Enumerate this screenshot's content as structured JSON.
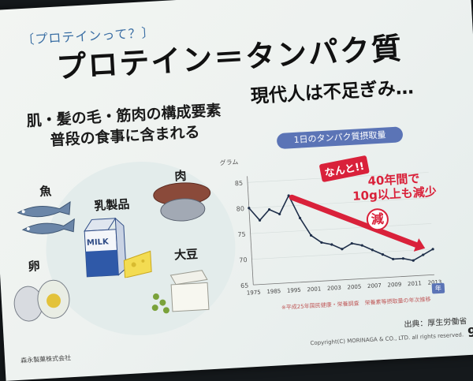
{
  "slide": {
    "section_tag": "〔プロテインって？〕",
    "title": "プロテイン＝タンパク質",
    "left_heading_line1": "肌・髪の毛・筋肉の構成要素",
    "left_heading_line2": "普段の食事に含まれる",
    "right_heading": "現代人は不足ぎみ…",
    "page_number": "9",
    "footer_left": "森永製菓株式会社",
    "footer_right": "Copyright(C) MORINAGA & CO., LTD. all rights reserved.",
    "source": "出典：厚生労働省"
  },
  "foods": {
    "fish": "魚",
    "dairy": "乳製品",
    "meat": "肉",
    "egg": "卵",
    "soy": "大豆",
    "milk_label": "MILK"
  },
  "chart_data": {
    "type": "line",
    "title": "1日のタンパク質摂取量",
    "ylabel": "グラム",
    "xlabel": "年",
    "x": [
      "1975",
      "",
      "1985",
      "",
      "1995",
      "",
      "2001",
      "",
      "2003",
      "",
      "2005",
      "",
      "2007",
      "",
      "2009",
      "",
      "2011",
      "",
      "2013"
    ],
    "xticks": [
      "1975",
      "1985",
      "1995",
      "2001",
      "2003",
      "2005",
      "2007",
      "2009",
      "2011",
      "2013"
    ],
    "yticks": [
      65,
      70,
      75,
      80,
      85
    ],
    "ylim": [
      65,
      85
    ],
    "series": [
      {
        "values": [
          80.0,
          77.5,
          79.5,
          78.5,
          82.0,
          77.5,
          74.0,
          72.5,
          72.0,
          71.0,
          72.0,
          71.5,
          70.5,
          69.5,
          68.5,
          68.5,
          68.0,
          69.0,
          70.0
        ]
      }
    ],
    "annotation_callout": "なんと!!",
    "annotation_line1": "40年間で",
    "annotation_line2": "10g以上も減少",
    "decrease_label": "減",
    "note": "※平成25年国民健康・栄養調査　栄養素等摂取量の年次推移",
    "colors": {
      "line": "#1f2f4a",
      "arrow": "#d9213a",
      "pill": "#5b74b6"
    }
  }
}
